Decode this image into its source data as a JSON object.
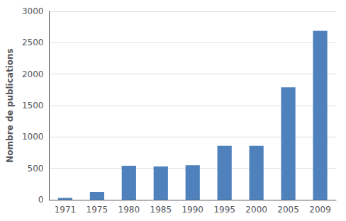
{
  "chart_data": {
    "type": "bar",
    "categories": [
      "1971",
      "1975",
      "1980",
      "1985",
      "1990",
      "1995",
      "2000",
      "2005",
      "2009"
    ],
    "values": [
      30,
      125,
      540,
      530,
      550,
      860,
      860,
      1790,
      2690
    ],
    "color": "#4f81bd",
    "ylabel": "Nombre de publications",
    "ylim": [
      0,
      3000
    ],
    "yticks": [
      0,
      500,
      1000,
      1500,
      2000,
      2500,
      3000
    ],
    "grid": true
  }
}
